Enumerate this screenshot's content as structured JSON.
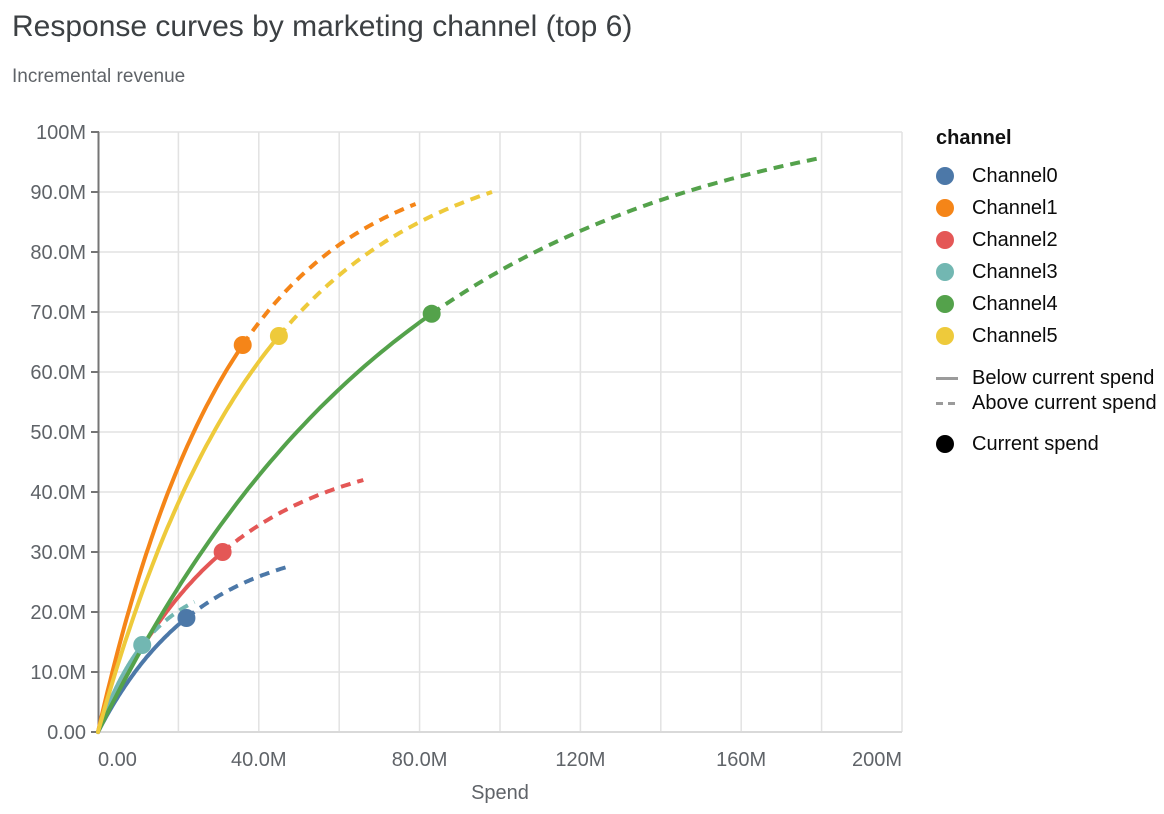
{
  "chart_data": {
    "type": "line",
    "title": "Response curves by marketing channel (top 6)",
    "y_axis_title": "Incremental revenue",
    "xlabel": "Spend",
    "units": "M = millions",
    "xlim_m": [
      0,
      200
    ],
    "ylim_m": [
      0,
      100
    ],
    "grid": true,
    "legend_position": "right",
    "x_ticks": {
      "values_m": [
        0,
        40,
        80,
        120,
        160,
        200
      ],
      "labels": [
        "0.00",
        "40.0M",
        "80.0M",
        "120M",
        "160M",
        "200M"
      ],
      "grid_step_m": 20
    },
    "y_ticks": {
      "values_m": [
        0,
        10,
        20,
        30,
        40,
        50,
        60,
        70,
        80,
        90,
        100
      ],
      "labels": [
        "0.00",
        "10.0M",
        "20.0M",
        "30.0M",
        "40.0M",
        "50.0M",
        "60.0M",
        "70.0M",
        "80.0M",
        "90.0M",
        "100M"
      ],
      "grid_step_m": 10
    },
    "series": [
      {
        "name": "Channel0",
        "color": "#4c78a8",
        "current_spend_m": 22,
        "current_revenue_m": 19.0,
        "curve_end_spend_m": 47,
        "curve_end_revenue_m": 27.5
      },
      {
        "name": "Channel1",
        "color": "#f58518",
        "current_spend_m": 36,
        "current_revenue_m": 64.5,
        "curve_end_spend_m": 79,
        "curve_end_revenue_m": 88.0
      },
      {
        "name": "Channel2",
        "color": "#e45756",
        "current_spend_m": 31,
        "current_revenue_m": 30.0,
        "curve_end_spend_m": 66,
        "curve_end_revenue_m": 42.0
      },
      {
        "name": "Channel3",
        "color": "#72b7b2",
        "current_spend_m": 11,
        "current_revenue_m": 14.5,
        "curve_end_spend_m": 24,
        "curve_end_revenue_m": 21.7
      },
      {
        "name": "Channel4",
        "color": "#54a24b",
        "current_spend_m": 83,
        "current_revenue_m": 69.7,
        "curve_end_spend_m": 180,
        "curve_end_revenue_m": 95.7
      },
      {
        "name": "Channel5",
        "color": "#eeca3b",
        "current_spend_m": 45,
        "current_revenue_m": 66.0,
        "curve_end_spend_m": 98,
        "curve_end_revenue_m": 90.0
      }
    ],
    "line_semantics": {
      "solid": "Below current spend",
      "dashed": "Above current spend",
      "point": "Current spend"
    }
  },
  "legend": {
    "title": "channel",
    "style_items": [
      {
        "label": "Below current spend",
        "style": "solid"
      },
      {
        "label": "Above current spend",
        "style": "dashed"
      }
    ],
    "point_item": {
      "label": "Current spend"
    }
  },
  "style": {
    "grid_color": "#e2e2e2",
    "x_axis_line_color": "#d9d9d9",
    "y_axis_color": "#757575",
    "tick_label_color": "#5f6368",
    "title_color": "#3c4043",
    "subtitle_color": "#5f6368",
    "legend_line_color": "#9b9b9b",
    "current_spend_dot_color": "#000000"
  }
}
